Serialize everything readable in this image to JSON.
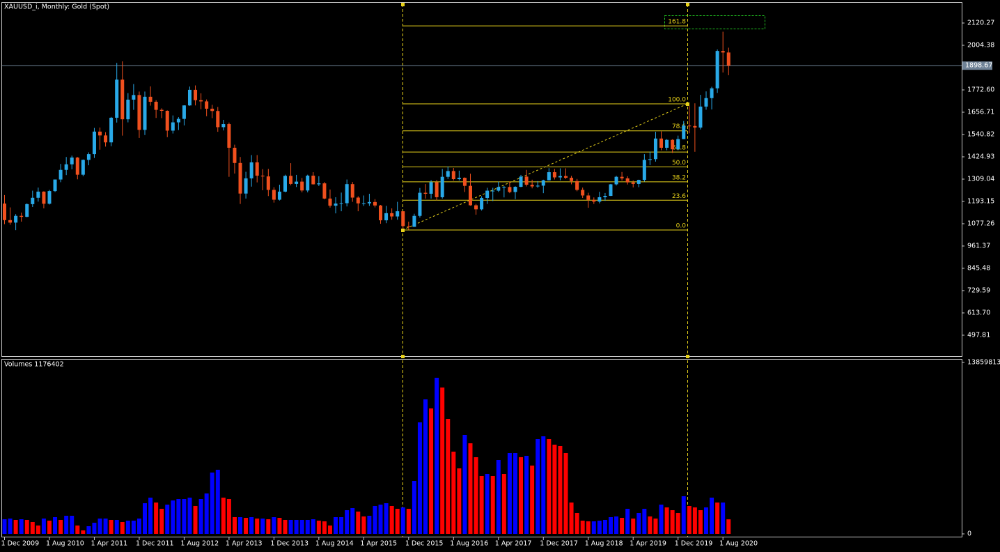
{
  "chart_data": [
    {
      "type": "candlestick",
      "title": "XAUUSD_i, Monthly:  Gold (Spot)",
      "up_color": "#29a9e8",
      "down_color": "#f0501e",
      "open": [
        1182,
        1096,
        1083,
        1118,
        1113,
        1179,
        1212,
        1244,
        1181,
        1247,
        1307,
        1357,
        1386,
        1421,
        1332,
        1409,
        1439,
        1556,
        1536,
        1500,
        1628,
        1826,
        1620,
        1722,
        1746,
        1565,
        1737,
        1711,
        1669,
        1664,
        1561,
        1604,
        1622,
        1692,
        1773,
        1719,
        1713,
        1675,
        1663,
        1579,
        1595,
        1472,
        1393,
        1234,
        1313,
        1396,
        1327,
        1323,
        1253,
        1202,
        1244,
        1326,
        1284,
        1296,
        1250,
        1327,
        1282,
        1287,
        1208,
        1171,
        1182,
        1184,
        1283,
        1213,
        1183,
        1183,
        1190,
        1172,
        1095,
        1132,
        1115,
        1142,
        1065,
        1061,
        1118,
        1238,
        1233,
        1293,
        1215,
        1321,
        1351,
        1309,
        1316,
        1274,
        1173,
        1152,
        1211,
        1249,
        1249,
        1268,
        1268,
        1242,
        1269,
        1322,
        1280,
        1271,
        1275,
        1303,
        1345,
        1318,
        1325,
        1316,
        1299,
        1253,
        1224,
        1201,
        1192,
        1215,
        1222,
        1282,
        1321,
        1313,
        1292,
        1284,
        1305,
        1409,
        1413,
        1520,
        1472,
        1513,
        1464,
        1517,
        1587,
        1585,
        1577,
        1686,
        1730,
        1781,
        1975,
        1967
      ],
      "high": [
        1226,
        1162,
        1127,
        1135,
        1183,
        1249,
        1265,
        1246,
        1253,
        1307,
        1388,
        1424,
        1431,
        1424,
        1411,
        1448,
        1575,
        1577,
        1553,
        1632,
        1913,
        1921,
        1756,
        1803,
        1764,
        1764,
        1791,
        1719,
        1677,
        1666,
        1640,
        1631,
        1693,
        1790,
        1796,
        1755,
        1723,
        1695,
        1684,
        1617,
        1603,
        1488,
        1424,
        1347,
        1434,
        1434,
        1361,
        1362,
        1267,
        1280,
        1332,
        1392,
        1331,
        1315,
        1332,
        1345,
        1324,
        1294,
        1255,
        1215,
        1239,
        1307,
        1294,
        1220,
        1224,
        1233,
        1205,
        1175,
        1170,
        1157,
        1191,
        1142,
        1088,
        1129,
        1263,
        1283,
        1304,
        1304,
        1362,
        1375,
        1367,
        1353,
        1318,
        1337,
        1180,
        1220,
        1264,
        1264,
        1296,
        1273,
        1296,
        1272,
        1331,
        1357,
        1306,
        1299,
        1306,
        1366,
        1362,
        1365,
        1365,
        1326,
        1310,
        1265,
        1238,
        1214,
        1243,
        1237,
        1284,
        1326,
        1346,
        1324,
        1302,
        1306,
        1439,
        1452,
        1555,
        1557,
        1517,
        1516,
        1535,
        1611,
        1689,
        1703,
        1747,
        1765,
        1789,
        1983,
        2075,
        1992
      ],
      "low": [
        1075,
        1072,
        1044,
        1088,
        1111,
        1164,
        1192,
        1157,
        1177,
        1242,
        1293,
        1330,
        1360,
        1308,
        1324,
        1381,
        1419,
        1462,
        1478,
        1480,
        1603,
        1535,
        1604,
        1669,
        1523,
        1538,
        1691,
        1627,
        1626,
        1527,
        1546,
        1564,
        1588,
        1690,
        1692,
        1672,
        1636,
        1626,
        1555,
        1562,
        1321,
        1338,
        1180,
        1208,
        1270,
        1292,
        1251,
        1221,
        1187,
        1198,
        1240,
        1277,
        1268,
        1240,
        1240,
        1281,
        1273,
        1204,
        1161,
        1131,
        1142,
        1167,
        1191,
        1142,
        1170,
        1170,
        1162,
        1077,
        1080,
        1098,
        1098,
        1052,
        1046,
        1061,
        1109,
        1208,
        1208,
        1199,
        1208,
        1310,
        1302,
        1302,
        1242,
        1171,
        1124,
        1146,
        1180,
        1195,
        1242,
        1214,
        1236,
        1205,
        1267,
        1271,
        1261,
        1264,
        1236,
        1302,
        1307,
        1303,
        1310,
        1282,
        1246,
        1211,
        1160,
        1180,
        1183,
        1196,
        1221,
        1276,
        1302,
        1281,
        1266,
        1267,
        1296,
        1382,
        1400,
        1459,
        1459,
        1445,
        1459,
        1517,
        1547,
        1451,
        1567,
        1670,
        1671,
        1757,
        1863,
        1849
      ],
      "close": [
        1096,
        1083,
        1118,
        1113,
        1179,
        1212,
        1244,
        1181,
        1247,
        1307,
        1357,
        1386,
        1421,
        1332,
        1409,
        1439,
        1556,
        1536,
        1500,
        1628,
        1826,
        1620,
        1722,
        1746,
        1565,
        1737,
        1711,
        1669,
        1664,
        1561,
        1604,
        1622,
        1692,
        1773,
        1719,
        1713,
        1675,
        1663,
        1579,
        1595,
        1472,
        1393,
        1234,
        1313,
        1396,
        1327,
        1323,
        1253,
        1202,
        1244,
        1326,
        1284,
        1296,
        1250,
        1327,
        1282,
        1287,
        1208,
        1171,
        1182,
        1184,
        1283,
        1213,
        1183,
        1183,
        1190,
        1172,
        1095,
        1132,
        1115,
        1142,
        1065,
        1061,
        1118,
        1238,
        1233,
        1293,
        1215,
        1321,
        1351,
        1309,
        1316,
        1274,
        1173,
        1152,
        1211,
        1249,
        1249,
        1268,
        1268,
        1242,
        1269,
        1322,
        1280,
        1271,
        1275,
        1303,
        1345,
        1318,
        1325,
        1316,
        1299,
        1253,
        1224,
        1201,
        1192,
        1215,
        1222,
        1282,
        1321,
        1313,
        1292,
        1284,
        1305,
        1409,
        1413,
        1520,
        1472,
        1513,
        1464,
        1517,
        1587,
        1585,
        1577,
        1686,
        1730,
        1781,
        1975,
        1967,
        1898.67
      ],
      "ylim": [
        389,
        2229
      ],
      "yticks": [
        2120.27,
        2004.38,
        {
          "value": 1772.6,
          "label": "1772.60"
        },
        1656.71,
        1540.82,
        1424.93,
        1309.04,
        1193.15,
        1077.26,
        961.37,
        845.48,
        729.59,
        {
          "value": 613.7,
          "label": "613.70"
        },
        497.81
      ],
      "current_price": 1898.67,
      "fibonacci": {
        "low": 1044.6,
        "high": 1700.2,
        "color": "#e8d21a",
        "levels": [
          {
            "value": 0,
            "label": "0.0"
          },
          23.6,
          38.2,
          {
            "value": 50,
            "label": "50.0"
          },
          61.8,
          78.6,
          {
            "value": 100,
            "label": "100.0"
          },
          161.8
        ]
      }
    },
    {
      "type": "bar",
      "title": "Volumes 1176402",
      "up_color": "#0000ff",
      "down_color": "#ff0000",
      "categories": [
        "1 Dec 2009",
        null,
        null,
        null,
        null,
        null,
        null,
        null,
        "1 Aug 2010",
        null,
        null,
        null,
        null,
        null,
        null,
        null,
        "1 Apr 2011",
        null,
        null,
        null,
        null,
        null,
        null,
        null,
        "1 Dec 2011",
        null,
        null,
        null,
        null,
        null,
        null,
        null,
        "1 Aug 2012",
        null,
        null,
        null,
        null,
        null,
        null,
        null,
        "1 Apr 2013",
        null,
        null,
        null,
        null,
        null,
        null,
        null,
        "1 Dec 2013",
        null,
        null,
        null,
        null,
        null,
        null,
        null,
        "1 Aug 2014",
        null,
        null,
        null,
        null,
        null,
        null,
        null,
        "1 Apr 2015",
        null,
        null,
        null,
        null,
        null,
        null,
        null,
        "1 Dec 2015",
        null,
        null,
        null,
        null,
        null,
        null,
        null,
        "1 Aug 2016",
        null,
        null,
        null,
        null,
        null,
        null,
        null,
        "1 Apr 2017",
        null,
        null,
        null,
        null,
        null,
        null,
        null,
        "1 Dec 2017",
        null,
        null,
        null,
        null,
        null,
        null,
        null,
        "1 Aug 2018",
        null,
        null,
        null,
        null,
        null,
        null,
        null,
        "1 Apr 2019",
        null,
        null,
        null,
        null,
        null,
        null,
        null,
        "1 Dec 2019",
        null,
        null,
        null,
        null,
        null,
        null,
        null,
        "1 Aug 2020",
        null
      ],
      "values": [
        1183000,
        1240000,
        1127000,
        1183000,
        1127000,
        958000,
        676000,
        1240000,
        1070000,
        1352000,
        1127000,
        1465000,
        1465000,
        676000,
        282000,
        620000,
        901000,
        1240000,
        1240000,
        1127000,
        1127000,
        958000,
        1070000,
        1070000,
        1240000,
        2479000,
        2930000,
        2535000,
        2028000,
        2366000,
        2704000,
        2817000,
        2817000,
        2930000,
        2254000,
        2817000,
        3268000,
        4958000,
        5183000,
        2930000,
        2817000,
        1352000,
        1352000,
        1296000,
        1352000,
        1240000,
        1240000,
        1183000,
        1352000,
        1296000,
        1127000,
        1127000,
        1127000,
        1127000,
        1127000,
        1183000,
        1070000,
        1014000,
        676000,
        1352000,
        1352000,
        1916000,
        2085000,
        1803000,
        1409000,
        1465000,
        2254000,
        2366000,
        2479000,
        2254000,
        2028000,
        2141000,
        2028000,
        4282000,
        9015000,
        10874000,
        10141000,
        12620000,
        11832000,
        9296000,
        6648000,
        5296000,
        8000000,
        7324000,
        6198000,
        4676000,
        4845000,
        4676000,
        5972000,
        4845000,
        6536000,
        6536000,
        6198000,
        6310000,
        5521000,
        7662000,
        7888000,
        7662000,
        7212000,
        7099000,
        6536000,
        2535000,
        1690000,
        1070000,
        1014000,
        1014000,
        1070000,
        1127000,
        1352000,
        1409000,
        1296000,
        2028000,
        1240000,
        1690000,
        2028000,
        1409000,
        1240000,
        2366000,
        2141000,
        1916000,
        1690000,
        3042000,
        2254000,
        2141000,
        1916000,
        2141000,
        2930000,
        2535000,
        2535000,
        1176402
      ],
      "ylim": [
        0,
        13859813
      ],
      "yticks": [
        13859813,
        0
      ]
    }
  ]
}
